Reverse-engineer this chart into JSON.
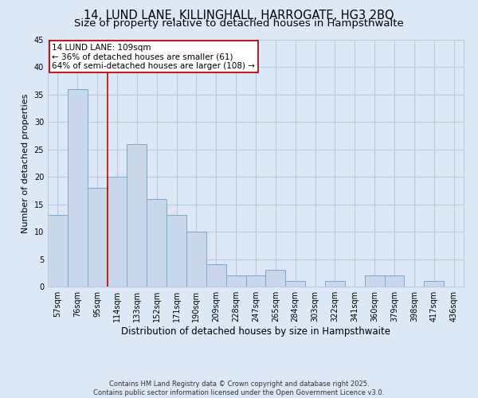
{
  "title_line1": "14, LUND LANE, KILLINGHALL, HARROGATE, HG3 2BQ",
  "title_line2": "Size of property relative to detached houses in Hampsthwaite",
  "xlabel": "Distribution of detached houses by size in Hampsthwaite",
  "ylabel": "Number of detached properties",
  "categories": [
    "57sqm",
    "76sqm",
    "95sqm",
    "114sqm",
    "133sqm",
    "152sqm",
    "171sqm",
    "190sqm",
    "209sqm",
    "228sqm",
    "247sqm",
    "265sqm",
    "284sqm",
    "303sqm",
    "322sqm",
    "341sqm",
    "360sqm",
    "379sqm",
    "398sqm",
    "417sqm",
    "436sqm"
  ],
  "values": [
    13,
    36,
    18,
    20,
    26,
    16,
    13,
    10,
    4,
    2,
    2,
    3,
    1,
    0,
    1,
    0,
    2,
    2,
    0,
    1,
    0
  ],
  "bar_color": "#c8d8ea",
  "bar_edge_color": "#7aaac8",
  "grid_color": "#b8cce0",
  "bg_color": "#dce8f5",
  "annotation_text": "14 LUND LANE: 109sqm\n← 36% of detached houses are smaller (61)\n64% of semi-detached houses are larger (108) →",
  "annotation_box_color": "#ffffff",
  "annotation_box_edge": "#cc0000",
  "vline_x": 2.5,
  "vline_color": "#cc0000",
  "ylim": [
    0,
    45
  ],
  "yticks": [
    0,
    5,
    10,
    15,
    20,
    25,
    30,
    35,
    40,
    45
  ],
  "footer_text": "Contains HM Land Registry data © Crown copyright and database right 2025.\nContains public sector information licensed under the Open Government Licence v3.0.",
  "title_fontsize": 10.5,
  "subtitle_fontsize": 9.5,
  "tick_fontsize": 7,
  "xlabel_fontsize": 8.5,
  "ylabel_fontsize": 8,
  "annotation_fontsize": 7.5,
  "footer_fontsize": 6
}
